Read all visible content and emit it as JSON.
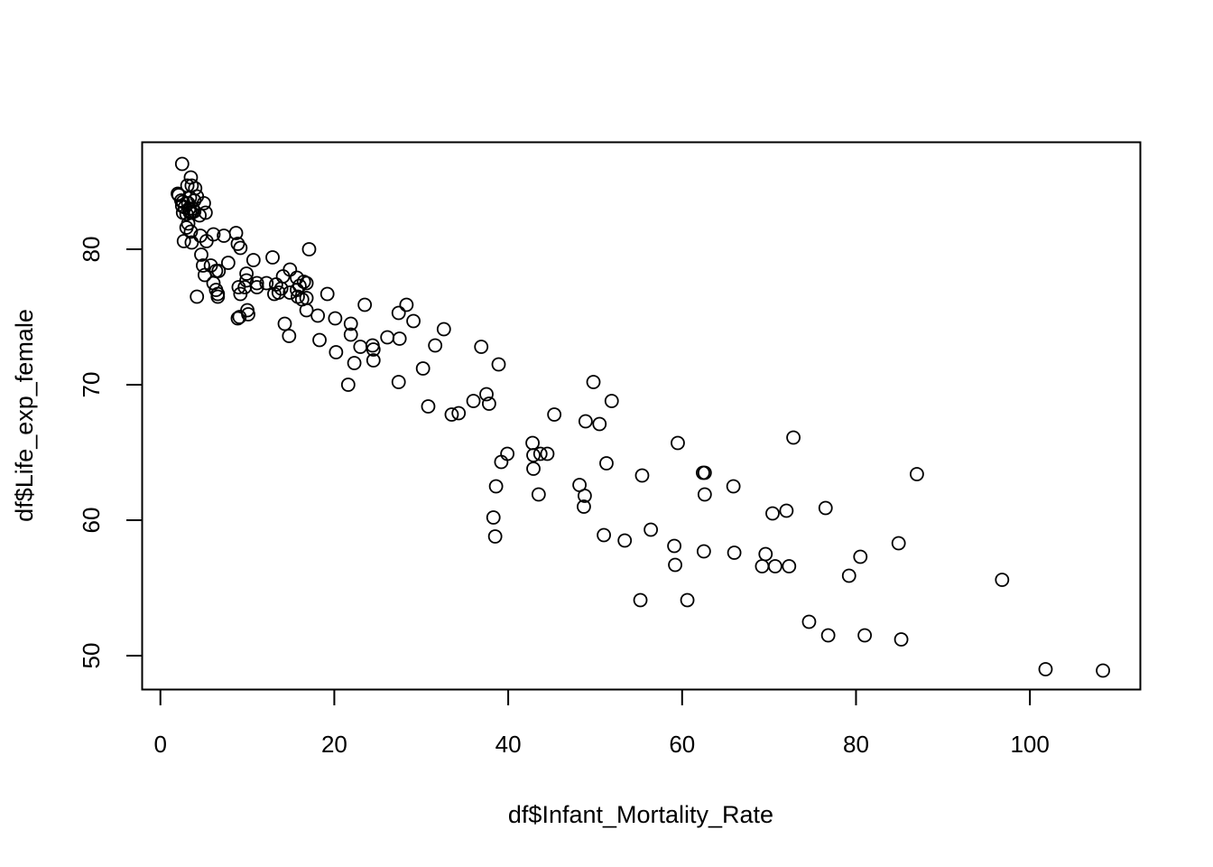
{
  "chart_data": {
    "type": "scatter",
    "xlabel": "df$Infant_Mortality_Rate",
    "ylabel": "df$Life_exp_female",
    "xlim": [
      -2.1,
      112.7
    ],
    "ylim": [
      47.5,
      87.9
    ],
    "xticks": [
      0,
      20,
      40,
      60,
      80,
      100
    ],
    "yticks": [
      50,
      60,
      70,
      80
    ],
    "grid": false,
    "marker": "open-circle",
    "points": [
      [
        2.5,
        86.3
      ],
      [
        2.0,
        84.1
      ],
      [
        2.1,
        84.0
      ],
      [
        3.1,
        84.7
      ],
      [
        3.5,
        85.3
      ],
      [
        3.6,
        84.7
      ],
      [
        4.0,
        84.5
      ],
      [
        2.4,
        83.6
      ],
      [
        2.6,
        83.5
      ],
      [
        3.4,
        83.8
      ],
      [
        3.9,
        83.6
      ],
      [
        4.2,
        83.9
      ],
      [
        5.0,
        83.4
      ],
      [
        2.5,
        83.2
      ],
      [
        2.8,
        83.1
      ],
      [
        3.2,
        83.4
      ],
      [
        3.3,
        83.0
      ],
      [
        3.7,
        83.0
      ],
      [
        3.9,
        82.8
      ],
      [
        2.6,
        82.7
      ],
      [
        3.0,
        82.6
      ],
      [
        3.4,
        82.7
      ],
      [
        3.6,
        82.7
      ],
      [
        4.5,
        82.5
      ],
      [
        5.2,
        82.7
      ],
      [
        3.2,
        81.9
      ],
      [
        3.0,
        81.6
      ],
      [
        3.5,
        81.3
      ],
      [
        4.6,
        81.0
      ],
      [
        6.1,
        81.1
      ],
      [
        7.3,
        81.0
      ],
      [
        8.7,
        81.2
      ],
      [
        2.7,
        80.6
      ],
      [
        3.6,
        80.5
      ],
      [
        5.3,
        80.6
      ],
      [
        8.9,
        80.4
      ],
      [
        9.2,
        80.1
      ],
      [
        17.1,
        80.0
      ],
      [
        4.7,
        79.6
      ],
      [
        10.7,
        79.2
      ],
      [
        12.9,
        79.4
      ],
      [
        4.9,
        78.8
      ],
      [
        5.8,
        78.8
      ],
      [
        7.8,
        79.0
      ],
      [
        6.4,
        78.4
      ],
      [
        6.7,
        78.4
      ],
      [
        14.9,
        78.5
      ],
      [
        5.1,
        78.1
      ],
      [
        9.9,
        78.2
      ],
      [
        14.1,
        78.0
      ],
      [
        15.7,
        77.9
      ],
      [
        9.9,
        77.7
      ],
      [
        16.5,
        77.6
      ],
      [
        16.8,
        77.5
      ],
      [
        6.1,
        77.5
      ],
      [
        6.4,
        77.0
      ],
      [
        11.1,
        77.5
      ],
      [
        12.2,
        77.5
      ],
      [
        9.0,
        77.2
      ],
      [
        9.7,
        77.2
      ],
      [
        11.1,
        77.2
      ],
      [
        13.3,
        77.4
      ],
      [
        13.9,
        77.1
      ],
      [
        16.0,
        77.3
      ],
      [
        15.7,
        77.0
      ],
      [
        6.6,
        76.7
      ],
      [
        9.2,
        76.7
      ],
      [
        13.1,
        76.7
      ],
      [
        13.6,
        76.8
      ],
      [
        14.9,
        76.8
      ],
      [
        15.8,
        76.5
      ],
      [
        16.3,
        76.3
      ],
      [
        16.8,
        76.4
      ],
      [
        4.2,
        76.5
      ],
      [
        19.2,
        76.7
      ],
      [
        6.6,
        76.5
      ],
      [
        10.0,
        75.5
      ],
      [
        10.1,
        75.2
      ],
      [
        16.8,
        75.5
      ],
      [
        9.1,
        75.0
      ],
      [
        8.9,
        74.9
      ],
      [
        18.1,
        75.1
      ],
      [
        20.1,
        74.9
      ],
      [
        23.5,
        75.9
      ],
      [
        27.4,
        75.3
      ],
      [
        28.3,
        75.9
      ],
      [
        29.1,
        74.7
      ],
      [
        14.3,
        74.5
      ],
      [
        21.9,
        74.5
      ],
      [
        32.6,
        74.1
      ],
      [
        14.8,
        73.6
      ],
      [
        18.3,
        73.3
      ],
      [
        21.9,
        73.7
      ],
      [
        26.1,
        73.5
      ],
      [
        27.5,
        73.4
      ],
      [
        23.0,
        72.8
      ],
      [
        24.5,
        72.6
      ],
      [
        24.4,
        72.9
      ],
      [
        31.6,
        72.9
      ],
      [
        36.9,
        72.8
      ],
      [
        20.2,
        72.4
      ],
      [
        22.3,
        71.6
      ],
      [
        24.5,
        71.8
      ],
      [
        30.2,
        71.2
      ],
      [
        38.9,
        71.5
      ],
      [
        21.6,
        70.0
      ],
      [
        27.4,
        70.2
      ],
      [
        37.5,
        69.3
      ],
      [
        37.8,
        68.6
      ],
      [
        36.0,
        68.8
      ],
      [
        30.8,
        68.4
      ],
      [
        33.5,
        67.8
      ],
      [
        34.3,
        67.9
      ],
      [
        49.8,
        70.2
      ],
      [
        51.9,
        68.8
      ],
      [
        45.3,
        67.8
      ],
      [
        48.9,
        67.3
      ],
      [
        50.5,
        67.1
      ],
      [
        72.8,
        66.1
      ],
      [
        59.5,
        65.7
      ],
      [
        42.8,
        65.7
      ],
      [
        42.9,
        64.8
      ],
      [
        39.9,
        64.9
      ],
      [
        43.7,
        64.9
      ],
      [
        44.5,
        64.9
      ],
      [
        51.3,
        64.2
      ],
      [
        39.2,
        64.3
      ],
      [
        42.9,
        63.8
      ],
      [
        55.4,
        63.3
      ],
      [
        62.4,
        63.5
      ],
      [
        62.6,
        63.5
      ],
      [
        87.0,
        63.4
      ],
      [
        38.6,
        62.5
      ],
      [
        48.2,
        62.6
      ],
      [
        65.9,
        62.5
      ],
      [
        43.5,
        61.9
      ],
      [
        48.8,
        61.8
      ],
      [
        62.6,
        61.9
      ],
      [
        48.7,
        61.0
      ],
      [
        76.5,
        60.9
      ],
      [
        70.4,
        60.5
      ],
      [
        72.0,
        60.7
      ],
      [
        38.3,
        60.2
      ],
      [
        38.5,
        58.8
      ],
      [
        56.4,
        59.3
      ],
      [
        51.0,
        58.9
      ],
      [
        53.4,
        58.5
      ],
      [
        59.1,
        58.1
      ],
      [
        84.9,
        58.3
      ],
      [
        62.5,
        57.7
      ],
      [
        66.0,
        57.6
      ],
      [
        69.6,
        57.5
      ],
      [
        80.5,
        57.3
      ],
      [
        59.2,
        56.7
      ],
      [
        69.2,
        56.6
      ],
      [
        70.7,
        56.6
      ],
      [
        72.3,
        56.6
      ],
      [
        79.2,
        55.9
      ],
      [
        96.8,
        55.6
      ],
      [
        55.2,
        54.1
      ],
      [
        60.6,
        54.1
      ],
      [
        74.6,
        52.5
      ],
      [
        76.8,
        51.5
      ],
      [
        81.0,
        51.5
      ],
      [
        85.2,
        51.2
      ],
      [
        101.8,
        49.0
      ],
      [
        108.4,
        48.9
      ]
    ]
  }
}
